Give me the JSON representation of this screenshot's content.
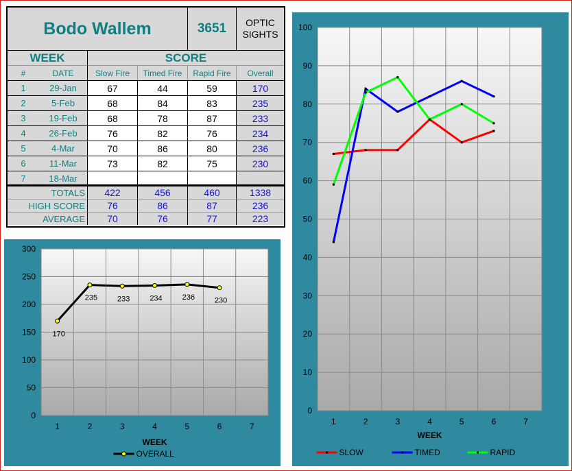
{
  "header": {
    "shooter_name": "Bodo Wallem",
    "shooter_number": "3651",
    "sight_type_line1": "OPTIC",
    "sight_type_line2": "SIGHTS"
  },
  "table": {
    "week_label": "WEEK",
    "score_label": "SCORE",
    "columns": [
      "#",
      "DATE",
      "Slow Fire",
      "Timed Fire",
      "Rapid Fire",
      "Overall"
    ],
    "rows": [
      {
        "num": "1",
        "date": "29-Jan",
        "slow": "67",
        "timed": "44",
        "rapid": "59",
        "overall": "170"
      },
      {
        "num": "2",
        "date": "5-Feb",
        "slow": "68",
        "timed": "84",
        "rapid": "83",
        "overall": "235"
      },
      {
        "num": "3",
        "date": "19-Feb",
        "slow": "68",
        "timed": "78",
        "rapid": "87",
        "overall": "233"
      },
      {
        "num": "4",
        "date": "26-Feb",
        "slow": "76",
        "timed": "82",
        "rapid": "76",
        "overall": "234"
      },
      {
        "num": "5",
        "date": "4-Mar",
        "slow": "70",
        "timed": "86",
        "rapid": "80",
        "overall": "236"
      },
      {
        "num": "6",
        "date": "11-Mar",
        "slow": "73",
        "timed": "82",
        "rapid": "75",
        "overall": "230"
      },
      {
        "num": "7",
        "date": "18-Mar",
        "slow": "",
        "timed": "",
        "rapid": "",
        "overall": ""
      }
    ],
    "summary": [
      {
        "label": "TOTALS",
        "slow": "422",
        "timed": "456",
        "rapid": "460",
        "overall": "1338"
      },
      {
        "label": "HIGH SCORE",
        "slow": "76",
        "timed": "86",
        "rapid": "87",
        "overall": "236"
      },
      {
        "label": "AVERAGE",
        "slow": "70",
        "timed": "76",
        "rapid": "77",
        "overall": "223"
      }
    ]
  },
  "chart_data": [
    {
      "id": "overall",
      "type": "line",
      "x": [
        1,
        2,
        3,
        4,
        5,
        6
      ],
      "categories": [
        "1",
        "2",
        "3",
        "4",
        "5",
        "6",
        "7"
      ],
      "series": [
        {
          "name": "OVERALL",
          "color": "#000000",
          "marker_color": "#ffff00",
          "values": [
            170,
            235,
            233,
            234,
            236,
            230
          ]
        }
      ],
      "data_labels": [
        "170",
        "235",
        "233",
        "234",
        "236",
        "230"
      ],
      "xlabel": "WEEK",
      "ylabel": "",
      "ylim": [
        0,
        300
      ],
      "yticks": [
        0,
        50,
        100,
        150,
        200,
        250,
        300
      ],
      "grid": true,
      "legend": "bottom"
    },
    {
      "id": "breakdown",
      "type": "line",
      "x": [
        1,
        2,
        3,
        4,
        5,
        6
      ],
      "categories": [
        "1",
        "2",
        "3",
        "4",
        "5",
        "6",
        "7"
      ],
      "series": [
        {
          "name": "SLOW",
          "color": "#ff0000",
          "values": [
            67,
            68,
            68,
            76,
            70,
            73
          ]
        },
        {
          "name": "TIMED",
          "color": "#0000ff",
          "values": [
            44,
            84,
            78,
            82,
            86,
            82
          ]
        },
        {
          "name": "RAPID",
          "color": "#00ff00",
          "values": [
            59,
            83,
            87,
            76,
            80,
            75
          ]
        }
      ],
      "xlabel": "WEEK",
      "ylabel": "",
      "ylim": [
        0,
        100
      ],
      "yticks": [
        0,
        10,
        20,
        30,
        40,
        50,
        60,
        70,
        80,
        90,
        100
      ],
      "grid": true,
      "legend": "bottom"
    }
  ]
}
